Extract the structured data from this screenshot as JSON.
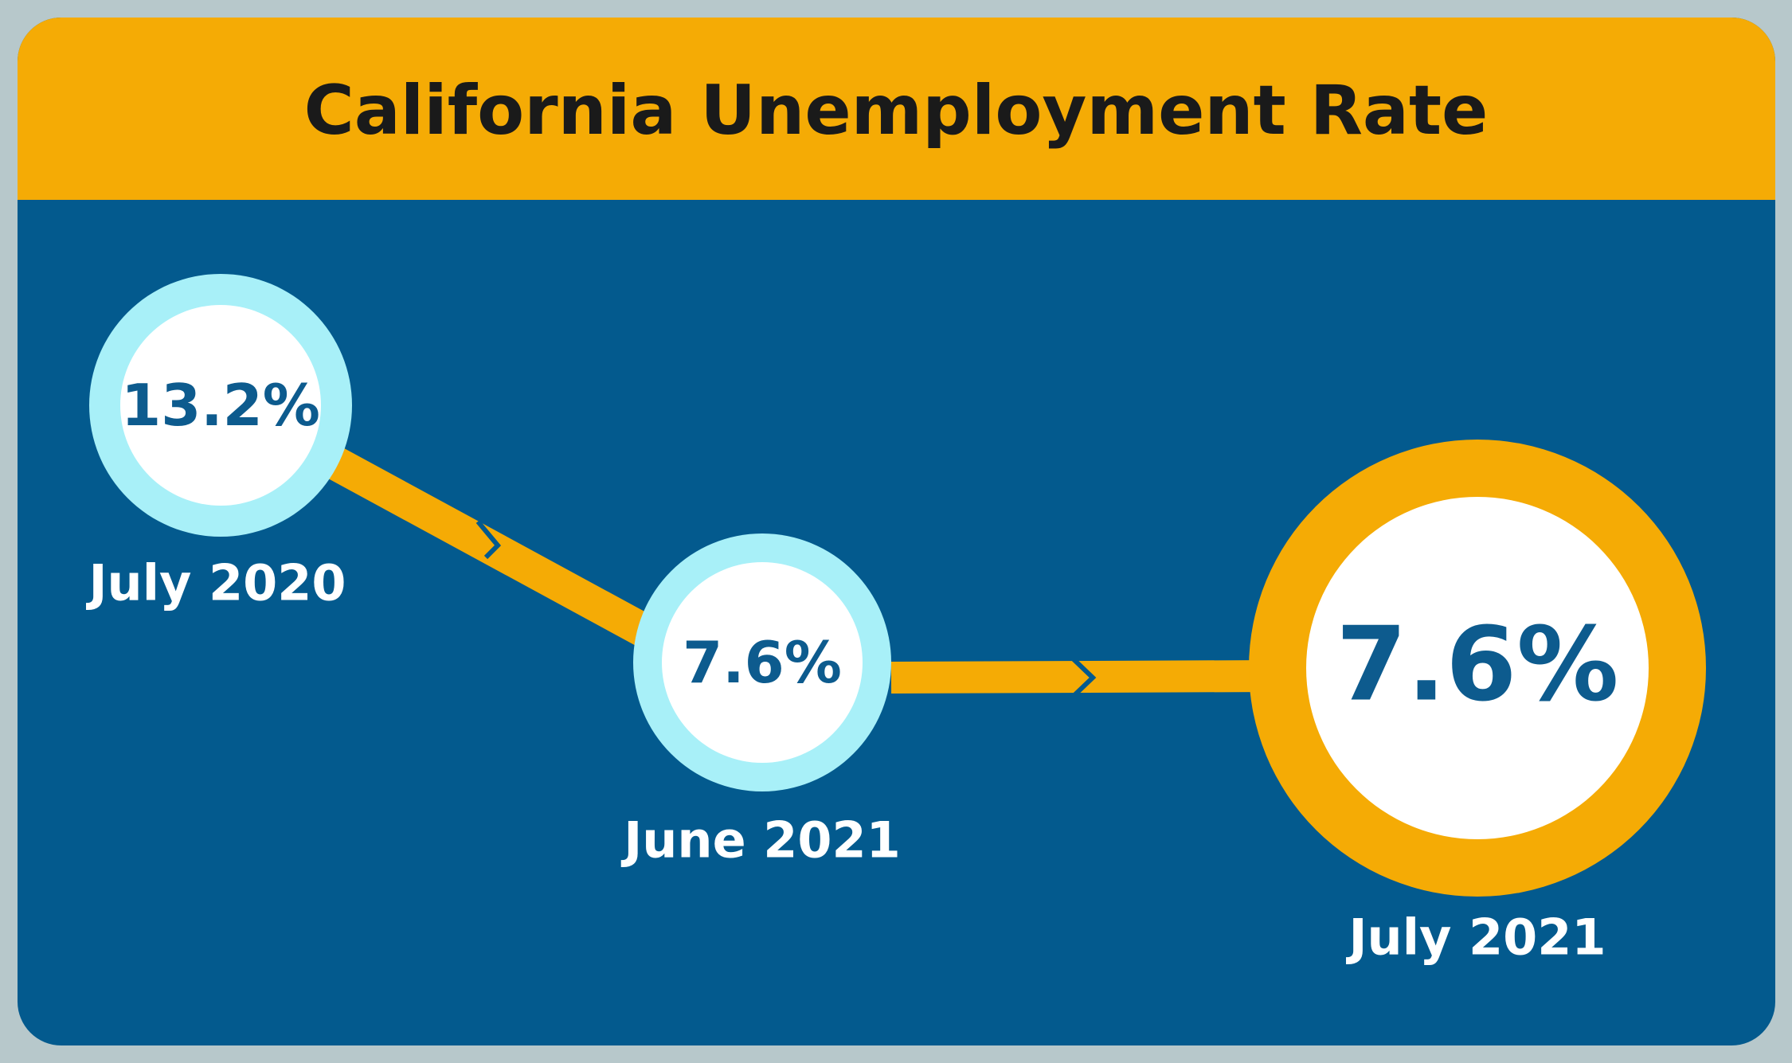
{
  "header": {
    "title": "California Unemployment Rate"
  },
  "nodes": [
    {
      "value": "13.2%",
      "label": "July 2020"
    },
    {
      "value": "7.6%",
      "label": "June 2021"
    },
    {
      "value": "7.6%",
      "label": "July 2021"
    }
  ]
}
